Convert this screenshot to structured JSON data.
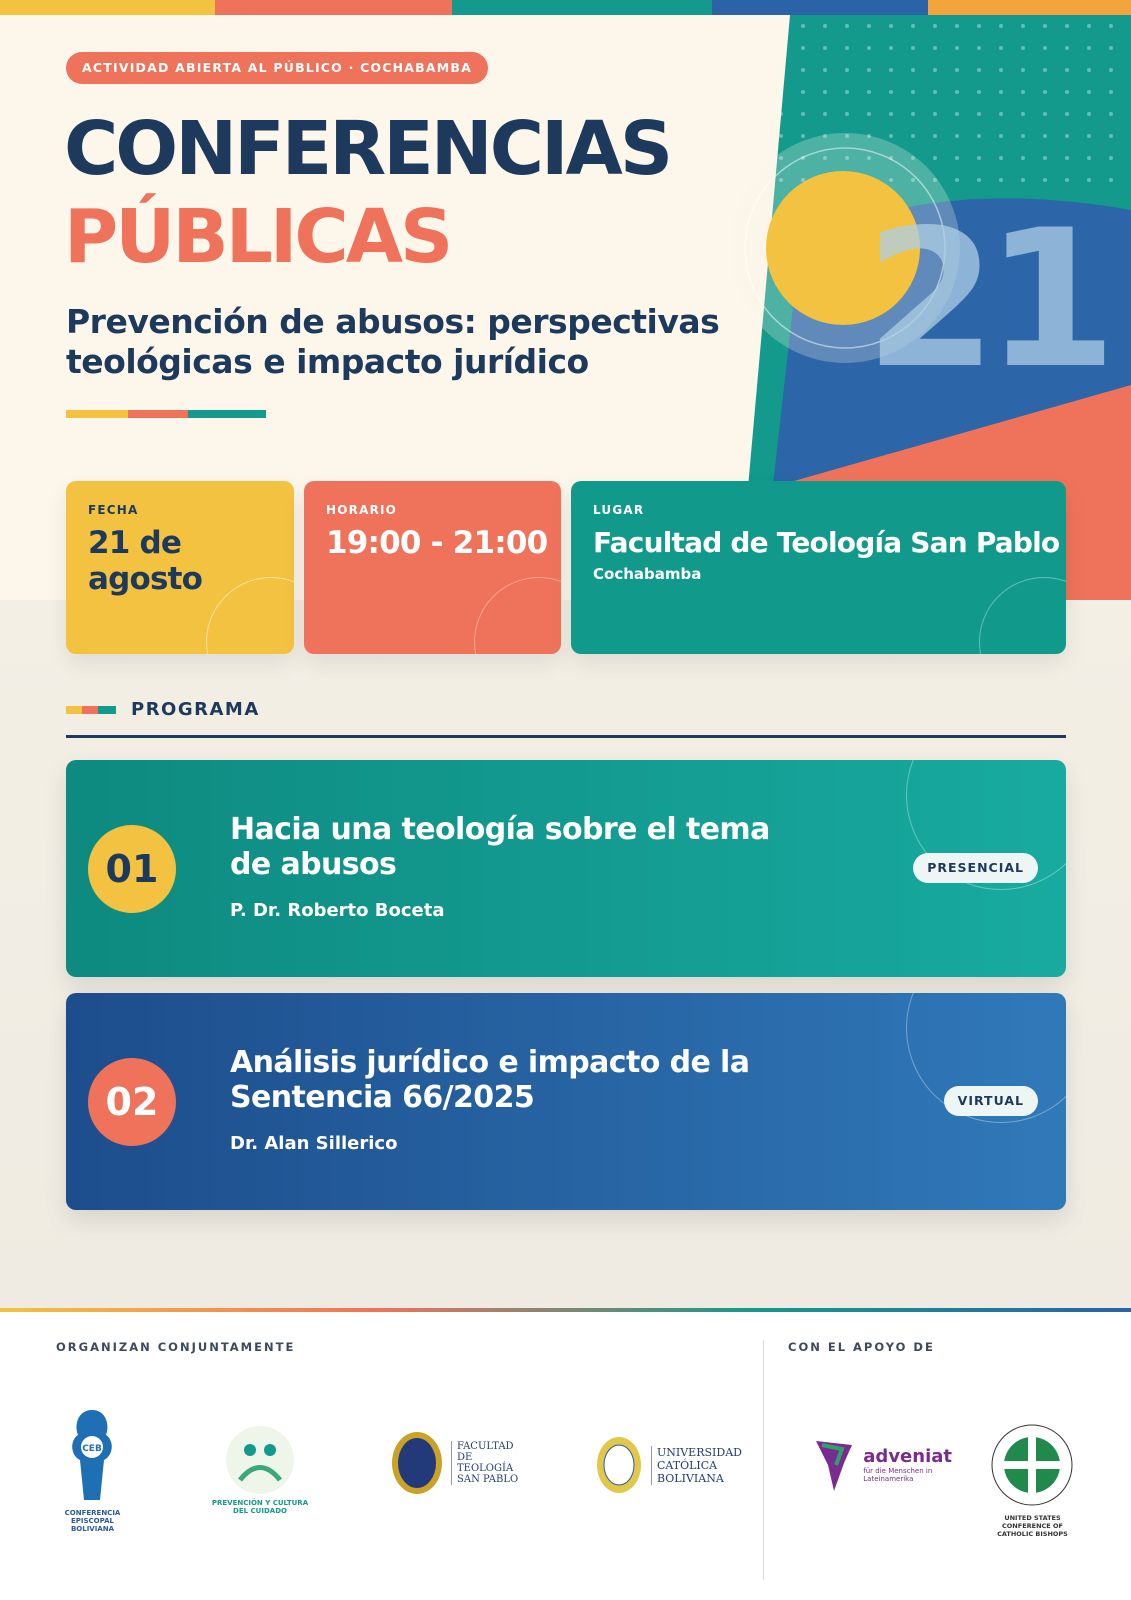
{
  "header": {
    "badge": "ACTIVIDAD ABIERTA AL PÚBLICO · COCHABAMBA",
    "title_line1": "CONFERENCIAS",
    "title_line2": "PÚBLICAS",
    "subtitle": "Prevención de abusos: perspectivas teológicas e impacto jurídico",
    "big_number": "21"
  },
  "info": [
    {
      "label": "FECHA",
      "value": "21 de agosto"
    },
    {
      "label": "HORARIO",
      "value": "19:00 - 21:00"
    },
    {
      "label": "LUGAR",
      "value": "Facultad de Teología San Pablo",
      "detail": "Cochabamba"
    }
  ],
  "program": {
    "heading": "PROGRAMA",
    "items": [
      {
        "number": "01",
        "title": "Hacia una teología sobre el tema de abusos",
        "speaker": "P. Dr. Roberto Boceta",
        "mode": "PRESENCIAL"
      },
      {
        "number": "02",
        "title": "Análisis jurídico e impacto de la Sentencia 66/2025",
        "speaker": "Dr. Alan Sillerico",
        "mode": "VIRTUAL"
      }
    ]
  },
  "footer": {
    "organizers_heading": "ORGANIZAN CONJUNTAMENTE",
    "organizers": [
      {
        "name": "CEB",
        "caption": "CONFERENCIA EPISCOPAL BOLIVIANA"
      },
      {
        "caption": "PREVENCIÓN Y CULTURA DEL CUIDADO"
      },
      {
        "caption": "FACULTAD DE TEOLOGÍA SAN PABLO"
      },
      {
        "caption": "UNIVERSIDAD CATÓLICA BOLIVIANA"
      }
    ],
    "support_heading": "CON EL APOYO DE",
    "supporters": [
      {
        "name": "adveniat",
        "caption": "für die Menschen in Lateinamerika"
      },
      {
        "caption": "UNITED STATES CONFERENCE OF CATHOLIC BISHOPS"
      }
    ]
  }
}
